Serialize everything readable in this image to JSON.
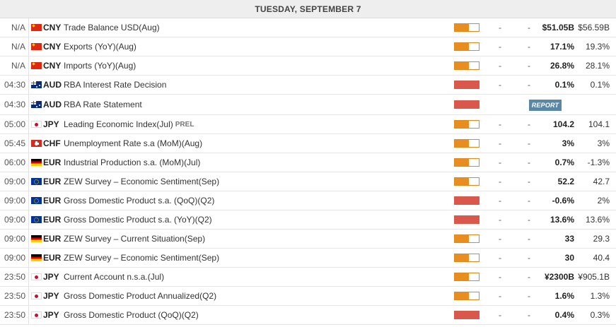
{
  "header": {
    "title": "TUESDAY, SEPTEMBER 7"
  },
  "colors": {
    "impact_medium": "#e88d1f",
    "impact_high": "#d9574b",
    "report_button": "#5b87a7"
  },
  "events": [
    {
      "time": "N/A",
      "flag": "china-flag-icon",
      "flag_class": "f-cn",
      "currency": "CNY",
      "event": "Trade Balance USD(Aug)",
      "prel": "",
      "impact": "medium",
      "actual": "-",
      "forecast": "-",
      "previous": "$51.05B",
      "consensus": "$56.59B",
      "report": ""
    },
    {
      "time": "N/A",
      "flag": "china-flag-icon",
      "flag_class": "f-cn",
      "currency": "CNY",
      "event": "Exports (YoY)(Aug)",
      "prel": "",
      "impact": "medium",
      "actual": "-",
      "forecast": "-",
      "previous": "17.1%",
      "consensus": "19.3%",
      "report": ""
    },
    {
      "time": "N/A",
      "flag": "china-flag-icon",
      "flag_class": "f-cn",
      "currency": "CNY",
      "event": "Imports (YoY)(Aug)",
      "prel": "",
      "impact": "medium",
      "actual": "-",
      "forecast": "-",
      "previous": "26.8%",
      "consensus": "28.1%",
      "report": ""
    },
    {
      "time": "04:30",
      "flag": "australia-flag-icon",
      "flag_class": "f-au",
      "currency": "AUD",
      "event": "RBA Interest Rate Decision",
      "prel": "",
      "impact": "high",
      "actual": "-",
      "forecast": "-",
      "previous": "0.1%",
      "consensus": "0.1%",
      "report": ""
    },
    {
      "time": "04:30",
      "flag": "australia-flag-icon",
      "flag_class": "f-au",
      "currency": "AUD",
      "event": "RBA Rate Statement",
      "prel": "",
      "impact": "high",
      "actual": "",
      "forecast": "",
      "previous": "",
      "consensus": "",
      "report": "REPORT"
    },
    {
      "time": "05:00",
      "flag": "japan-flag-icon",
      "flag_class": "f-jp",
      "currency": "JPY",
      "event": "Leading Economic Index(Jul)",
      "prel": "PREL",
      "impact": "medium",
      "actual": "-",
      "forecast": "-",
      "previous": "104.2",
      "consensus": "104.1",
      "report": ""
    },
    {
      "time": "05:45",
      "flag": "switzerland-flag-icon",
      "flag_class": "f-ch",
      "currency": "CHF",
      "event": "Unemployment Rate s.a (MoM)(Aug)",
      "prel": "",
      "impact": "medium",
      "actual": "-",
      "forecast": "-",
      "previous": "3%",
      "consensus": "3%",
      "report": ""
    },
    {
      "time": "06:00",
      "flag": "germany-flag-icon",
      "flag_class": "f-de",
      "currency": "EUR",
      "event": "Industrial Production s.a. (MoM)(Jul)",
      "prel": "",
      "impact": "medium",
      "actual": "-",
      "forecast": "-",
      "previous": "0.7%",
      "consensus": "-1.3%",
      "report": ""
    },
    {
      "time": "09:00",
      "flag": "eu-flag-icon",
      "flag_class": "f-eu",
      "currency": "EUR",
      "event": "ZEW Survey – Economic Sentiment(Sep)",
      "prel": "",
      "impact": "medium",
      "actual": "-",
      "forecast": "-",
      "previous": "52.2",
      "consensus": "42.7",
      "report": ""
    },
    {
      "time": "09:00",
      "flag": "eu-flag-icon",
      "flag_class": "f-eu",
      "currency": "EUR",
      "event": "Gross Domestic Product s.a. (QoQ)(Q2)",
      "prel": "",
      "impact": "high",
      "actual": "-",
      "forecast": "-",
      "previous": "-0.6%",
      "consensus": "2%",
      "report": ""
    },
    {
      "time": "09:00",
      "flag": "eu-flag-icon",
      "flag_class": "f-eu",
      "currency": "EUR",
      "event": "Gross Domestic Product s.a. (YoY)(Q2)",
      "prel": "",
      "impact": "high",
      "actual": "-",
      "forecast": "-",
      "previous": "13.6%",
      "consensus": "13.6%",
      "report": ""
    },
    {
      "time": "09:00",
      "flag": "germany-flag-icon",
      "flag_class": "f-de",
      "currency": "EUR",
      "event": "ZEW Survey – Current Situation(Sep)",
      "prel": "",
      "impact": "medium",
      "actual": "-",
      "forecast": "-",
      "previous": "33",
      "consensus": "29.3",
      "report": ""
    },
    {
      "time": "09:00",
      "flag": "germany-flag-icon",
      "flag_class": "f-de",
      "currency": "EUR",
      "event": "ZEW Survey – Economic Sentiment(Sep)",
      "prel": "",
      "impact": "medium",
      "actual": "-",
      "forecast": "-",
      "previous": "30",
      "consensus": "40.4",
      "report": ""
    },
    {
      "time": "23:50",
      "flag": "japan-flag-icon",
      "flag_class": "f-jp",
      "currency": "JPY",
      "event": "Current Account n.s.a.(Jul)",
      "prel": "",
      "impact": "medium",
      "actual": "-",
      "forecast": "-",
      "previous": "¥2300B",
      "consensus": "¥905.1B",
      "report": ""
    },
    {
      "time": "23:50",
      "flag": "japan-flag-icon",
      "flag_class": "f-jp",
      "currency": "JPY",
      "event": "Gross Domestic Product Annualized(Q2)",
      "prel": "",
      "impact": "medium",
      "actual": "-",
      "forecast": "-",
      "previous": "1.6%",
      "consensus": "1.3%",
      "report": ""
    },
    {
      "time": "23:50",
      "flag": "japan-flag-icon",
      "flag_class": "f-jp",
      "currency": "JPY",
      "event": "Gross Domestic Product (QoQ)(Q2)",
      "prel": "",
      "impact": "high",
      "actual": "-",
      "forecast": "-",
      "previous": "0.4%",
      "consensus": "0.3%",
      "report": ""
    }
  ]
}
